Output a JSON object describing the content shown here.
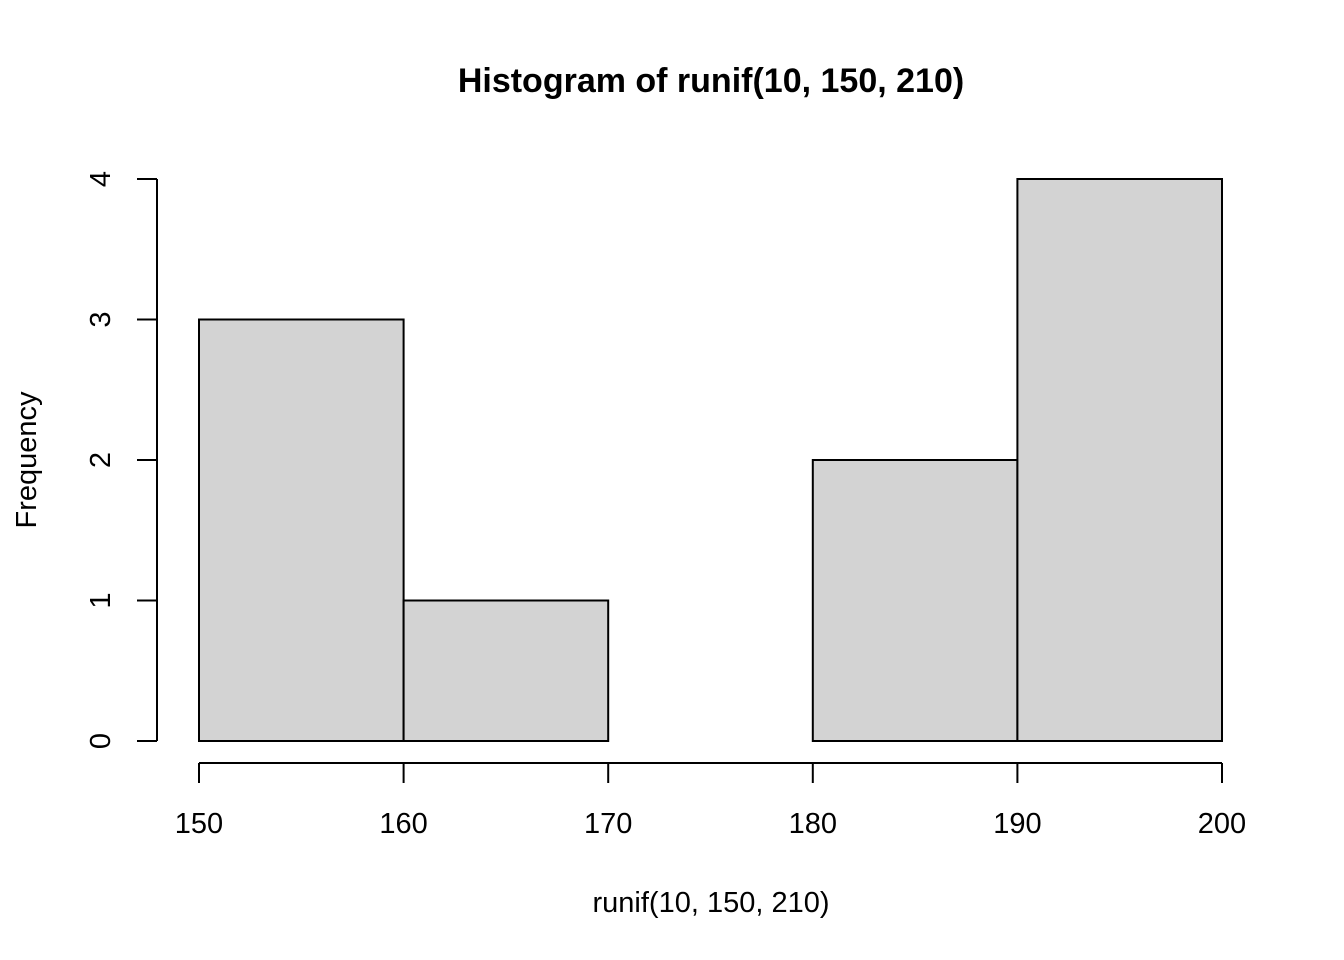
{
  "chart_data": {
    "type": "bar",
    "subtype": "histogram",
    "title": "Histogram of runif(10, 150, 210)",
    "xlabel": "runif(10, 150, 210)",
    "ylabel": "Frequency",
    "bins": [
      {
        "from": 150,
        "to": 160,
        "count": 3
      },
      {
        "from": 160,
        "to": 170,
        "count": 1
      },
      {
        "from": 170,
        "to": 180,
        "count": 0
      },
      {
        "from": 180,
        "to": 190,
        "count": 2
      },
      {
        "from": 190,
        "to": 200,
        "count": 4
      }
    ],
    "xlim": [
      150,
      200
    ],
    "ylim": [
      0,
      4
    ],
    "x_ticks": [
      "150",
      "160",
      "170",
      "180",
      "190",
      "200"
    ],
    "y_ticks": [
      "0",
      "1",
      "2",
      "3",
      "4"
    ],
    "bar_color": "#d3d3d3",
    "grid": false,
    "legend": "none"
  }
}
